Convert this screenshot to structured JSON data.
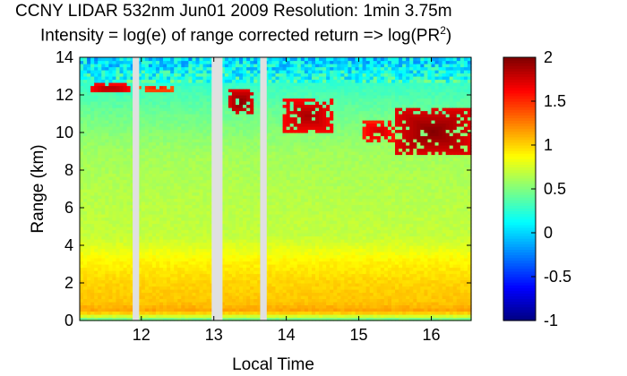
{
  "titles": {
    "line1": "CCNY LIDAR 532nm Jun01 2009 Resolution: 1min 3.75m",
    "line2_prefix": "Intensity = log(e) of range corrected return => log(PR",
    "line2_sup": "2",
    "line2_suffix": ")"
  },
  "chart_data": {
    "type": "heatmap",
    "title": "CCNY LIDAR 532nm Jun01 2009 Resolution: 1min 3.75m",
    "subtitle": "Intensity = log(e) of range corrected return => log(PR2)",
    "xlabel": "Local Time",
    "ylabel": "Range (km)",
    "xlim": [
      11.15,
      16.55
    ],
    "ylim": [
      0,
      14
    ],
    "xticks": [
      12,
      13,
      14,
      15,
      16
    ],
    "yticks": [
      0,
      2,
      4,
      6,
      8,
      10,
      12,
      14
    ],
    "colorbar": {
      "range": [
        -1,
        2
      ],
      "ticks": [
        -1,
        -0.5,
        0,
        0.5,
        1,
        1.5,
        2
      ],
      "tick_labels": [
        "-1",
        "-0.5",
        "0",
        "0.5",
        "1",
        "1.5",
        "2"
      ],
      "colormap": "jet"
    },
    "data_gaps_hours": [
      [
        11.88,
        11.97
      ],
      [
        12.97,
        13.12
      ],
      [
        13.64,
        13.73
      ]
    ],
    "features": [
      {
        "type": "cloud",
        "time": [
          11.3,
          11.85
        ],
        "range_km": [
          12.1,
          12.6
        ],
        "intensity": 1.9
      },
      {
        "type": "cloud",
        "time": [
          11.97,
          12.45
        ],
        "range_km": [
          12.2,
          12.55
        ],
        "intensity": 1.6
      },
      {
        "type": "cloud",
        "time": [
          13.2,
          13.55
        ],
        "range_km": [
          11.0,
          12.3
        ],
        "intensity": 2.0
      },
      {
        "type": "cloud",
        "time": [
          13.95,
          14.65
        ],
        "range_km": [
          10.0,
          11.8
        ],
        "intensity": 1.9
      },
      {
        "type": "cloud",
        "time": [
          15.05,
          15.5
        ],
        "range_km": [
          9.5,
          10.6
        ],
        "intensity": 1.8
      },
      {
        "type": "cloud",
        "time": [
          15.5,
          16.55
        ],
        "range_km": [
          8.8,
          11.3
        ],
        "intensity": 2.0
      }
    ],
    "background_profile": [
      {
        "range_km": 0.0,
        "intensity": 0.35
      },
      {
        "range_km": 0.5,
        "intensity": 1.15
      },
      {
        "range_km": 1.0,
        "intensity": 1.05
      },
      {
        "range_km": 2.0,
        "intensity": 1.0
      },
      {
        "range_km": 3.2,
        "intensity": 0.9
      },
      {
        "range_km": 4.5,
        "intensity": 0.7
      },
      {
        "range_km": 7.0,
        "intensity": 0.65
      },
      {
        "range_km": 9.0,
        "intensity": 0.6
      },
      {
        "range_km": 11.0,
        "intensity": 0.45
      },
      {
        "range_km": 12.5,
        "intensity": 0.3
      },
      {
        "range_km": 13.2,
        "intensity": 0.15
      },
      {
        "range_km": 14.0,
        "intensity": 0.0
      }
    ]
  }
}
